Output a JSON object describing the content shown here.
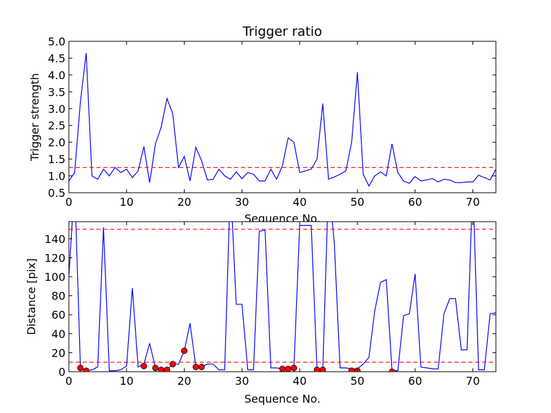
{
  "chart_data": [
    {
      "type": "line",
      "title": "Trigger ratio",
      "xlabel": "Sequence No.",
      "ylabel": "Trigger strength",
      "xlim": [
        0,
        74
      ],
      "ylim": [
        0.5,
        5.0
      ],
      "xticks": [
        "0",
        "10",
        "20",
        "30",
        "40",
        "50",
        "60",
        "70"
      ],
      "yticks": [
        "0.5",
        "1.0",
        "1.5",
        "2.0",
        "2.5",
        "3.0",
        "3.5",
        "4.0",
        "4.5",
        "5.0"
      ],
      "series": [
        {
          "style": "line",
          "color": "#0000ff",
          "x": [
            0,
            1,
            2,
            3,
            4,
            5,
            6,
            7,
            8,
            9,
            10,
            11,
            12,
            13,
            14,
            15,
            16,
            17,
            18,
            19,
            20,
            21,
            22,
            23,
            24,
            25,
            26,
            27,
            28,
            29,
            30,
            31,
            32,
            33,
            34,
            35,
            36,
            37,
            38,
            39,
            40,
            41,
            42,
            43,
            44,
            45,
            46,
            47,
            48,
            49,
            50,
            51,
            52,
            53,
            54,
            55,
            56,
            57,
            58,
            59,
            60,
            61,
            62,
            63,
            64,
            65,
            66,
            67,
            68,
            69,
            70,
            71,
            72,
            73,
            74
          ],
          "y": [
            0.85,
            1.1,
            3.2,
            4.65,
            1.0,
            0.9,
            1.2,
            1.0,
            1.25,
            1.1,
            1.2,
            0.95,
            1.15,
            1.87,
            0.8,
            1.95,
            2.45,
            3.3,
            2.85,
            1.25,
            1.58,
            0.85,
            1.85,
            1.45,
            0.88,
            0.9,
            1.2,
            1.0,
            0.9,
            1.12,
            0.92,
            1.1,
            1.05,
            0.85,
            0.85,
            1.2,
            0.9,
            1.3,
            2.13,
            2.0,
            1.1,
            1.15,
            1.2,
            1.5,
            3.15,
            0.9,
            0.97,
            1.05,
            1.15,
            2.0,
            4.08,
            1.05,
            0.7,
            1.0,
            1.12,
            1.0,
            1.95,
            1.1,
            0.85,
            0.78,
            0.98,
            0.85,
            0.88,
            0.92,
            0.82,
            0.9,
            0.88,
            0.8,
            0.8,
            0.82,
            0.82,
            1.02,
            0.95,
            0.88,
            1.2
          ]
        },
        {
          "style": "dashed",
          "color": "#ff0000",
          "y_constant": 1.25
        }
      ]
    },
    {
      "type": "line",
      "title": "",
      "xlabel": "Sequence No.",
      "ylabel": "Distance [pix]",
      "xlim": [
        0,
        74
      ],
      "ylim": [
        0,
        158
      ],
      "xticks": [
        "0",
        "10",
        "20",
        "30",
        "40",
        "50",
        "60",
        "70"
      ],
      "yticks": [
        "0",
        "20",
        "40",
        "60",
        "80",
        "100",
        "120",
        "140"
      ],
      "series": [
        {
          "style": "line",
          "color": "#0000ff",
          "x": [
            0,
            1,
            2,
            3,
            4,
            5,
            6,
            7,
            8,
            9,
            10,
            11,
            12,
            13,
            14,
            15,
            16,
            17,
            18,
            19,
            20,
            21,
            22,
            23,
            24,
            25,
            26,
            27,
            28,
            29,
            30,
            31,
            32,
            33,
            34,
            35,
            36,
            37,
            38,
            39,
            40,
            41,
            42,
            43,
            44,
            45,
            46,
            47,
            48,
            49,
            50,
            51,
            52,
            53,
            54,
            55,
            56,
            57,
            58,
            59,
            60,
            61,
            62,
            63,
            64,
            65,
            66,
            67,
            68,
            69,
            70,
            71,
            72,
            73,
            74
          ],
          "y": [
            100,
            200,
            4,
            1,
            2,
            5,
            152,
            1,
            1,
            2,
            6,
            88,
            5,
            8,
            30,
            4,
            2,
            2,
            8,
            8,
            22,
            51,
            5,
            5,
            8,
            8,
            2,
            2,
            200,
            71,
            71,
            2,
            2,
            148,
            149,
            4,
            4,
            3,
            3,
            4,
            154,
            154,
            154,
            2,
            2,
            200,
            135,
            4,
            4,
            3,
            3,
            8,
            15,
            64,
            94,
            97,
            1,
            1,
            59,
            61,
            103,
            5,
            4,
            3,
            3,
            61,
            77,
            77,
            23,
            23,
            200,
            2,
            2,
            61,
            62
          ]
        },
        {
          "style": "markers",
          "color": "#ff0000",
          "x": [
            2,
            3,
            13,
            15,
            16,
            17,
            18,
            20,
            22,
            23,
            37,
            38,
            39,
            43,
            44,
            49,
            50,
            56
          ],
          "y": [
            4,
            1,
            6,
            4,
            2,
            2,
            8,
            22,
            5,
            5,
            3,
            3,
            4,
            2,
            2,
            1,
            1,
            0
          ]
        },
        {
          "style": "dashed",
          "color": "#ff0000",
          "y_constant": 150
        },
        {
          "style": "dashed",
          "color": "#ff0000",
          "y_constant": 10
        }
      ]
    }
  ]
}
